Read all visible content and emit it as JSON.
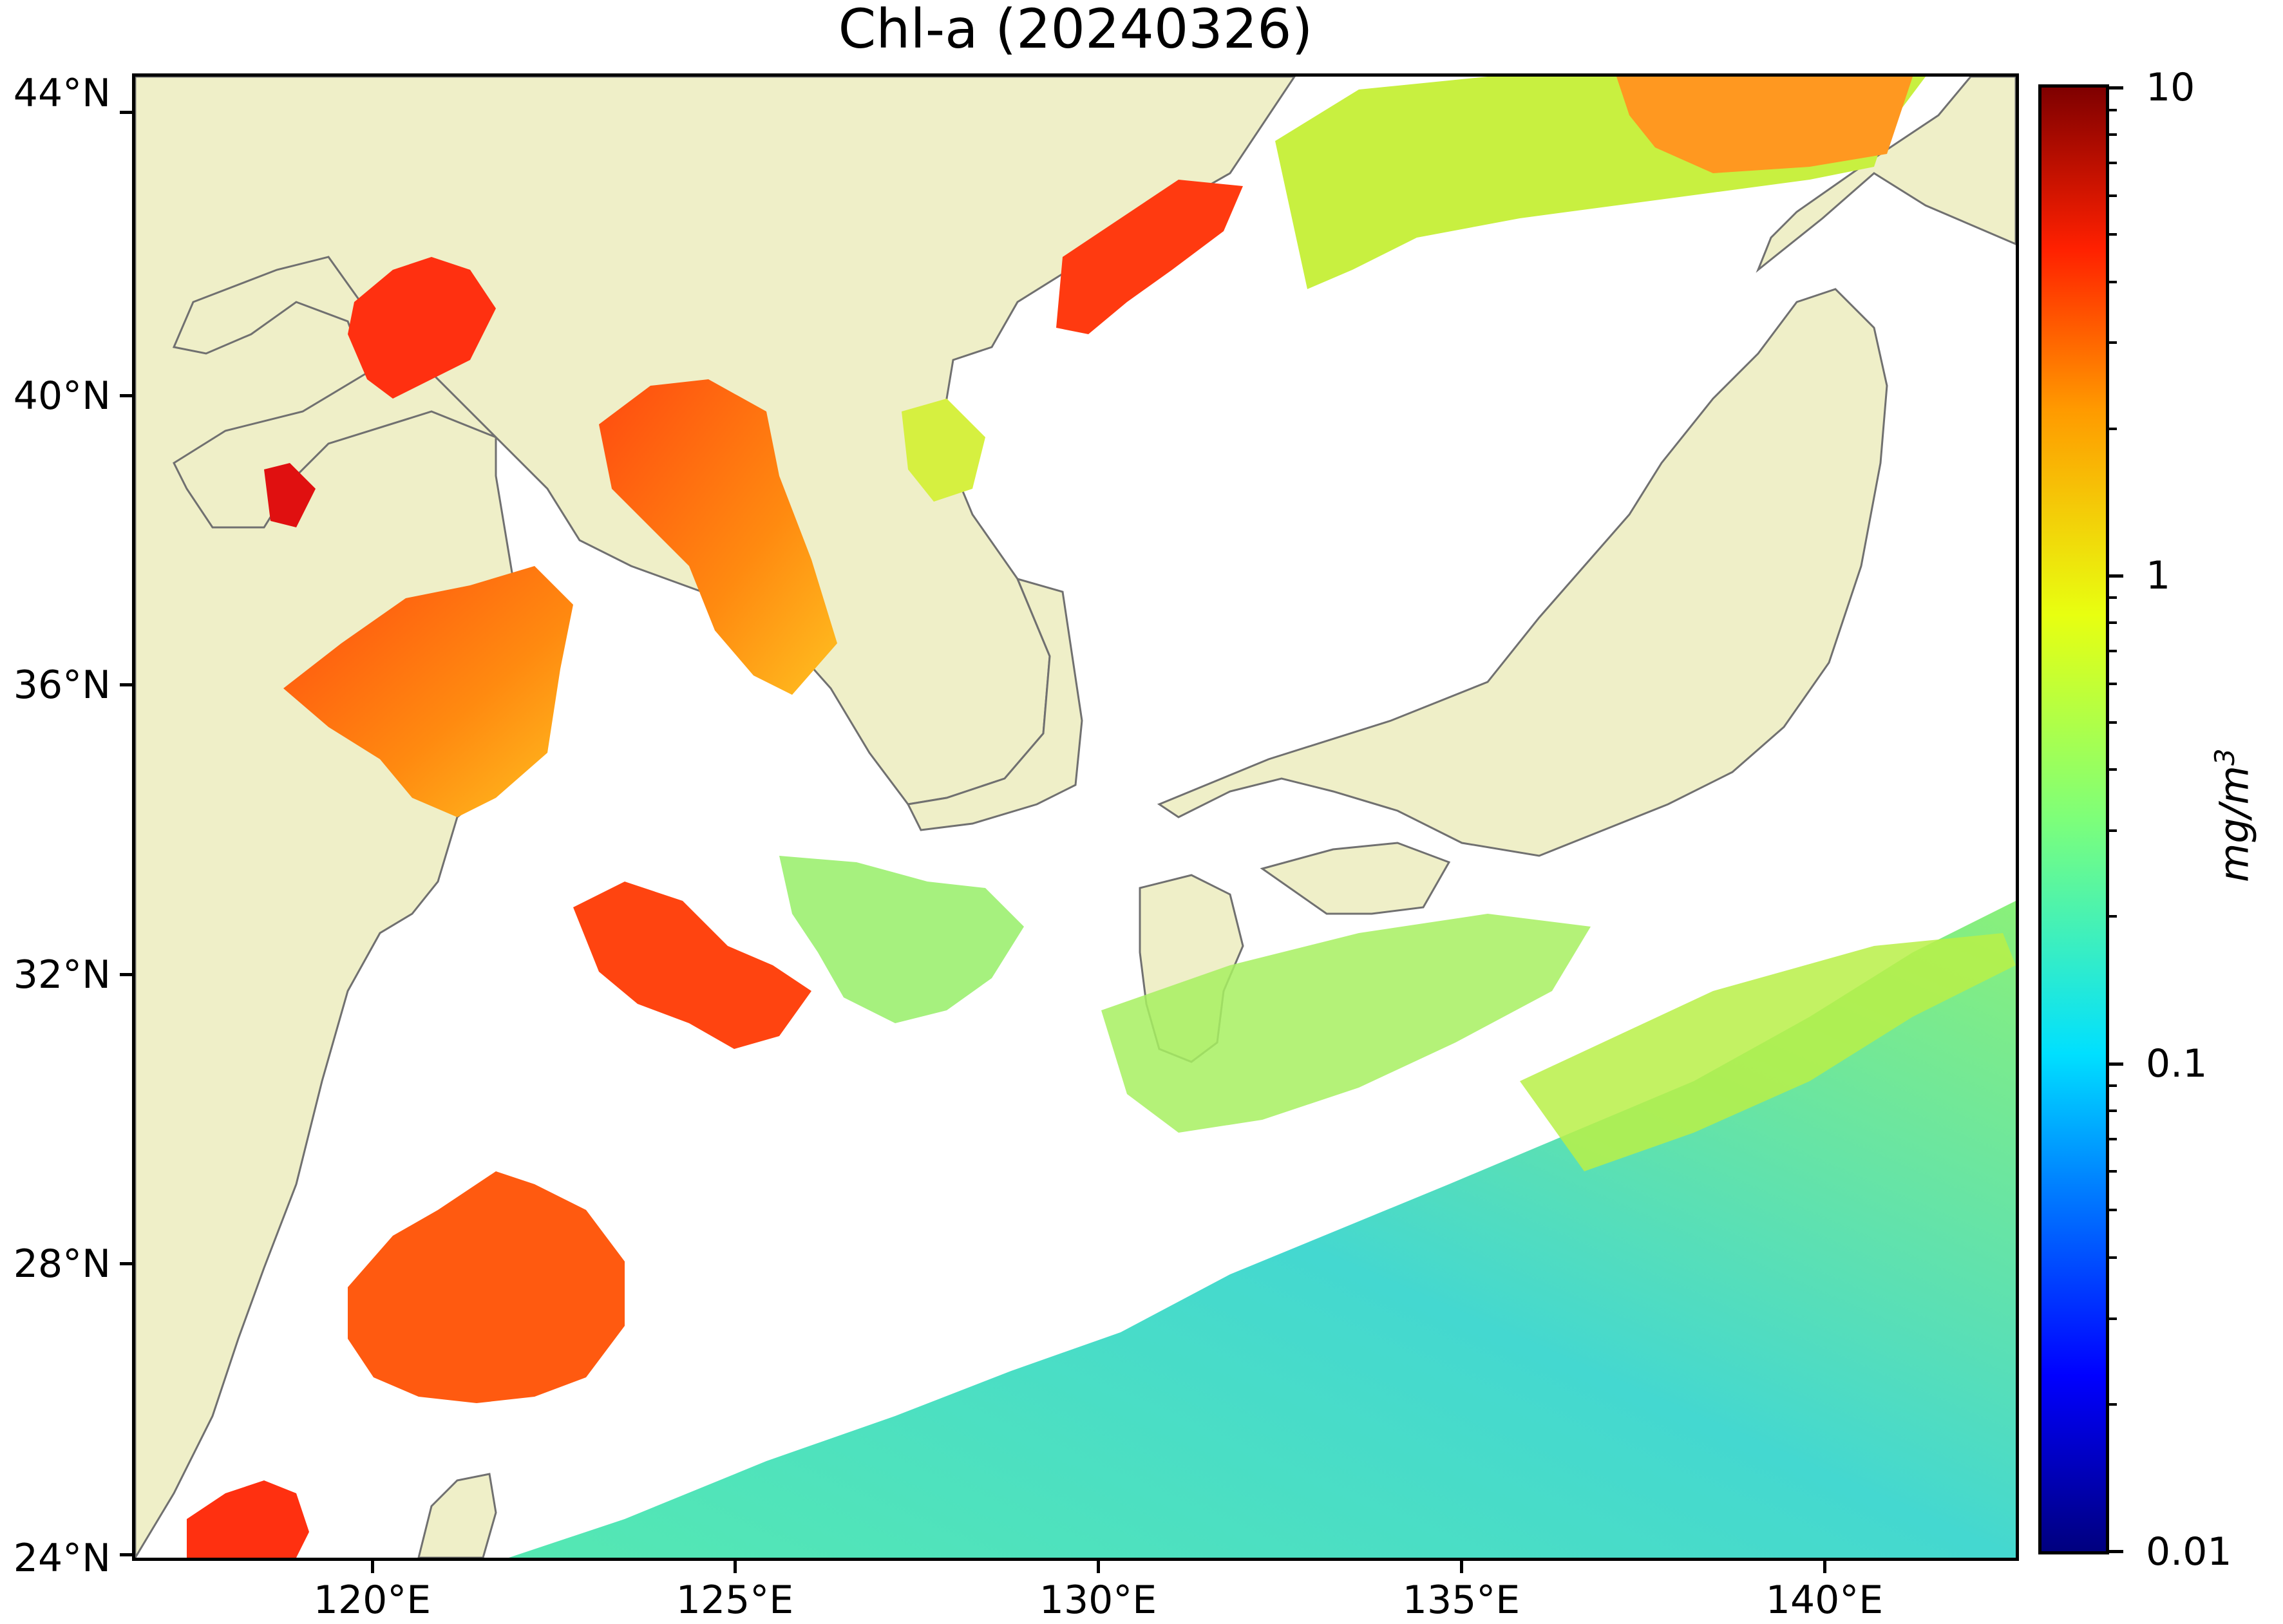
{
  "title": "Chl-a (20240326)",
  "axes": {
    "y_ticks": [
      "44°N",
      "40°N",
      "36°N",
      "32°N",
      "28°N",
      "24°N"
    ],
    "x_ticks": [
      "120°E",
      "125°E",
      "130°E",
      "135°E",
      "140°E"
    ],
    "lon_range_deg": [
      117.0,
      143.0
    ],
    "lat_range_deg": [
      24.0,
      44.5
    ],
    "y_tick_values_deg": [
      44,
      40,
      36,
      32,
      28,
      24
    ],
    "x_tick_values_deg": [
      120,
      125,
      130,
      135,
      140
    ]
  },
  "colorbar": {
    "labels": [
      "10",
      "1",
      "0.1",
      "0.01"
    ],
    "values": [
      10,
      1,
      0.1,
      0.01
    ],
    "scale": "log",
    "unit_label": "mg/m",
    "unit_exponent": "3",
    "colormap": "jet"
  },
  "colors": {
    "land": "#efefc8",
    "coastline": "#707070",
    "no_data": "#ffffff"
  }
}
